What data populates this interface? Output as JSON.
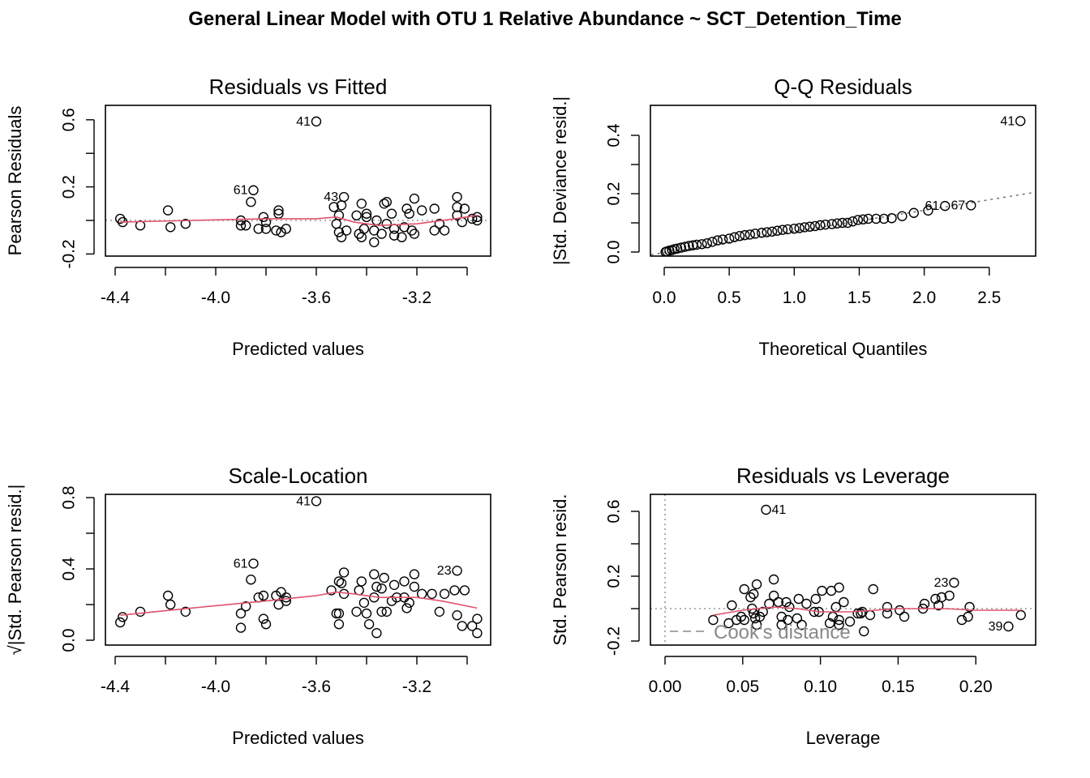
{
  "title": "General Linear Model with OTU 1 Relative Abundance ~ SCT_Detention_Time",
  "colors": {
    "points": "#000000",
    "smoother": "#DF536B",
    "reference": "#999999"
  },
  "chart_data": [
    {
      "id": "p1",
      "type": "scatter",
      "title": "Residuals vs Fitted",
      "xlabel": "Predicted values",
      "ylabel": "Pearson Residuals",
      "xticks": [
        -4.4,
        -4.2,
        -4.0,
        -3.8,
        -3.6,
        -3.4,
        -3.2,
        -3.0
      ],
      "xtick_labels": [
        "-4.4",
        "-4.0",
        "-3.6",
        "-3.2"
      ],
      "yticks": [
        -0.2,
        0,
        0.2,
        0.4,
        0.6
      ],
      "ytick_labels": [
        "-0.2",
        "0.2",
        "0.6"
      ],
      "reference_line": {
        "type": "horizontal",
        "y": 0,
        "style": "dotted"
      },
      "points": [
        [
          -4.38,
          0.01
        ],
        [
          -4.37,
          -0.01
        ],
        [
          -4.3,
          -0.03
        ],
        [
          -4.19,
          0.06
        ],
        [
          -4.18,
          -0.04
        ],
        [
          -4.12,
          -0.02
        ],
        [
          -3.9,
          0.0
        ],
        [
          -3.9,
          -0.03
        ],
        [
          -3.88,
          -0.03
        ],
        [
          -3.86,
          0.11
        ],
        [
          -3.83,
          -0.05
        ],
        [
          -3.81,
          0.02
        ],
        [
          -3.8,
          -0.01
        ],
        [
          -3.8,
          -0.05
        ],
        [
          -3.75,
          0.06
        ],
        [
          -3.75,
          0.04
        ],
        [
          -3.76,
          -0.06
        ],
        [
          -3.74,
          -0.07
        ],
        [
          -3.72,
          -0.05
        ],
        [
          -3.53,
          0.08
        ],
        [
          -3.51,
          0.03
        ],
        [
          -3.52,
          -0.02
        ],
        [
          -3.5,
          0.09
        ],
        [
          -3.51,
          -0.07
        ],
        [
          -3.5,
          -0.1
        ],
        [
          -3.48,
          -0.06
        ],
        [
          -3.44,
          0.03
        ],
        [
          -3.42,
          0.1
        ],
        [
          -3.4,
          0.04
        ],
        [
          -3.4,
          0.02
        ],
        [
          -3.41,
          -0.05
        ],
        [
          -3.43,
          -0.08
        ],
        [
          -3.42,
          -0.1
        ],
        [
          -3.36,
          0.0
        ],
        [
          -3.37,
          -0.13
        ],
        [
          -3.37,
          -0.06
        ],
        [
          -3.34,
          -0.08
        ],
        [
          -3.33,
          0.1
        ],
        [
          -3.32,
          0.11
        ],
        [
          -3.32,
          -0.02
        ],
        [
          -3.3,
          0.04
        ],
        [
          -3.29,
          -0.05
        ],
        [
          -3.29,
          -0.09
        ],
        [
          -3.26,
          -0.1
        ],
        [
          -3.25,
          -0.04
        ],
        [
          -3.24,
          0.07
        ],
        [
          -3.23,
          0.04
        ],
        [
          -3.22,
          -0.06
        ],
        [
          -3.21,
          -0.08
        ],
        [
          -3.21,
          0.13
        ],
        [
          -3.18,
          0.06
        ],
        [
          -3.13,
          0.07
        ],
        [
          -3.13,
          -0.06
        ],
        [
          -3.11,
          -0.02
        ],
        [
          -3.09,
          -0.06
        ],
        [
          -3.04,
          0.14
        ],
        [
          -3.04,
          0.08
        ],
        [
          -3.01,
          0.07
        ],
        [
          -3.04,
          0.03
        ],
        [
          -3.02,
          -0.01
        ],
        [
          -2.98,
          0.01
        ],
        [
          -2.96,
          0.02
        ],
        [
          -2.96,
          0.0
        ]
      ],
      "labeled_points": [
        {
          "id": "41",
          "x": -3.6,
          "y": 0.59
        },
        {
          "id": "61",
          "x": -3.85,
          "y": 0.18
        },
        {
          "id": "43",
          "x": -3.49,
          "y": 0.14
        }
      ],
      "smoother": [
        [
          -4.38,
          -0.01
        ],
        [
          -4.1,
          0.0
        ],
        [
          -3.8,
          0.01
        ],
        [
          -3.6,
          0.01
        ],
        [
          -3.52,
          0.02
        ],
        [
          -3.45,
          -0.01
        ],
        [
          -3.35,
          -0.03
        ],
        [
          -3.2,
          -0.02
        ],
        [
          -3.05,
          0.01
        ],
        [
          -2.96,
          0.03
        ]
      ]
    },
    {
      "id": "p2",
      "type": "scatter",
      "title": "Q-Q Residuals",
      "xlabel": "Theoretical Quantiles",
      "ylabel": "|Std. Deviance resid.|",
      "xticks": [
        0,
        0.5,
        1.0,
        1.5,
        2.0,
        2.5
      ],
      "xtick_labels": [
        "0.0",
        "0.5",
        "1.0",
        "1.5",
        "2.0",
        "2.5"
      ],
      "yticks": [
        0,
        0.1,
        0.2,
        0.3,
        0.4
      ],
      "ytick_labels": [
        "0.0",
        "0.2",
        "0.4"
      ],
      "reference_line": {
        "type": "abline",
        "intercept": -0.002,
        "slope": 0.0725,
        "style": "dashed"
      },
      "points": [
        [
          0.01,
          0.0
        ],
        [
          0.02,
          0.002
        ],
        [
          0.04,
          0.005
        ],
        [
          0.06,
          0.007
        ],
        [
          0.08,
          0.01
        ],
        [
          0.1,
          0.012
        ],
        [
          0.13,
          0.015
        ],
        [
          0.16,
          0.018
        ],
        [
          0.19,
          0.021
        ],
        [
          0.22,
          0.023
        ],
        [
          0.25,
          0.025
        ],
        [
          0.29,
          0.027
        ],
        [
          0.33,
          0.03
        ],
        [
          0.37,
          0.035
        ],
        [
          0.41,
          0.04
        ],
        [
          0.45,
          0.043
        ],
        [
          0.5,
          0.046
        ],
        [
          0.54,
          0.051
        ],
        [
          0.58,
          0.055
        ],
        [
          0.62,
          0.058
        ],
        [
          0.66,
          0.06
        ],
        [
          0.7,
          0.063
        ],
        [
          0.75,
          0.066
        ],
        [
          0.79,
          0.068
        ],
        [
          0.83,
          0.07
        ],
        [
          0.87,
          0.073
        ],
        [
          0.91,
          0.076
        ],
        [
          0.95,
          0.078
        ],
        [
          1.0,
          0.08
        ],
        [
          1.04,
          0.082
        ],
        [
          1.08,
          0.085
        ],
        [
          1.12,
          0.087
        ],
        [
          1.16,
          0.089
        ],
        [
          1.2,
          0.092
        ],
        [
          1.24,
          0.094
        ],
        [
          1.29,
          0.096
        ],
        [
          1.33,
          0.098
        ],
        [
          1.37,
          0.1
        ],
        [
          1.41,
          0.1
        ],
        [
          1.45,
          0.105
        ],
        [
          1.49,
          0.11
        ],
        [
          1.53,
          0.112
        ],
        [
          1.57,
          0.114
        ],
        [
          1.63,
          0.114
        ],
        [
          1.69,
          0.114
        ],
        [
          1.75,
          0.116
        ],
        [
          1.83,
          0.123
        ],
        [
          1.92,
          0.134
        ],
        [
          2.03,
          0.142
        ]
      ],
      "labeled_points": [
        {
          "id": "41",
          "x": 2.74,
          "y": 0.449
        },
        {
          "id": "67",
          "x": 2.36,
          "y": 0.16
        },
        {
          "id": "61",
          "x": 2.16,
          "y": 0.158
        }
      ],
      "smoother": []
    },
    {
      "id": "p3",
      "type": "scatter",
      "title": "Scale-Location",
      "xlabel": "Predicted values",
      "ylabel": "√|Std. Pearson resid.|",
      "xticks": [
        -4.4,
        -4.2,
        -4.0,
        -3.8,
        -3.6,
        -3.4,
        -3.2,
        -3.0
      ],
      "xtick_labels": [
        "-4.4",
        "-4.0",
        "-3.6",
        "-3.2"
      ],
      "yticks": [
        0,
        0.2,
        0.4,
        0.6,
        0.8
      ],
      "ytick_labels": [
        "0.0",
        "0.4",
        "0.8"
      ],
      "reference_line": null,
      "points": [
        [
          -4.38,
          0.1
        ],
        [
          -4.37,
          0.13
        ],
        [
          -4.3,
          0.16
        ],
        [
          -4.19,
          0.25
        ],
        [
          -4.18,
          0.2
        ],
        [
          -4.12,
          0.16
        ],
        [
          -3.9,
          0.15
        ],
        [
          -3.9,
          0.07
        ],
        [
          -3.88,
          0.19
        ],
        [
          -3.86,
          0.34
        ],
        [
          -3.83,
          0.24
        ],
        [
          -3.81,
          0.25
        ],
        [
          -3.81,
          0.12
        ],
        [
          -3.8,
          0.09
        ],
        [
          -3.76,
          0.25
        ],
        [
          -3.74,
          0.27
        ],
        [
          -3.75,
          0.2
        ],
        [
          -3.72,
          0.24
        ],
        [
          -3.72,
          0.22
        ],
        [
          -3.54,
          0.28
        ],
        [
          -3.52,
          0.15
        ],
        [
          -3.51,
          0.15
        ],
        [
          -3.51,
          0.09
        ],
        [
          -3.51,
          0.33
        ],
        [
          -3.5,
          0.32
        ],
        [
          -3.49,
          0.38
        ],
        [
          -3.49,
          0.26
        ],
        [
          -3.44,
          0.16
        ],
        [
          -3.43,
          0.28
        ],
        [
          -3.42,
          0.33
        ],
        [
          -3.41,
          0.21
        ],
        [
          -3.4,
          0.15
        ],
        [
          -3.39,
          0.09
        ],
        [
          -3.37,
          0.37
        ],
        [
          -3.36,
          0.04
        ],
        [
          -3.36,
          0.3
        ],
        [
          -3.37,
          0.24
        ],
        [
          -3.34,
          0.29
        ],
        [
          -3.33,
          0.35
        ],
        [
          -3.34,
          0.16
        ],
        [
          -3.32,
          0.16
        ],
        [
          -3.29,
          0.31
        ],
        [
          -3.3,
          0.22
        ],
        [
          -3.28,
          0.24
        ],
        [
          -3.25,
          0.33
        ],
        [
          -3.25,
          0.24
        ],
        [
          -3.24,
          0.18
        ],
        [
          -3.23,
          0.21
        ],
        [
          -3.21,
          0.37
        ],
        [
          -3.21,
          0.3
        ],
        [
          -3.18,
          0.26
        ],
        [
          -3.14,
          0.26
        ],
        [
          -3.11,
          0.16
        ],
        [
          -3.09,
          0.26
        ],
        [
          -3.05,
          0.28
        ],
        [
          -3.01,
          0.28
        ],
        [
          -3.04,
          0.14
        ],
        [
          -3.02,
          0.08
        ],
        [
          -2.98,
          0.08
        ],
        [
          -2.96,
          0.12
        ],
        [
          -2.96,
          0.04
        ]
      ],
      "labeled_points": [
        {
          "id": "41",
          "x": -3.6,
          "y": 0.78
        },
        {
          "id": "61",
          "x": -3.85,
          "y": 0.43
        },
        {
          "id": "23",
          "x": -3.04,
          "y": 0.39
        }
      ],
      "smoother": [
        [
          -4.38,
          0.14
        ],
        [
          -4.1,
          0.18
        ],
        [
          -3.8,
          0.22
        ],
        [
          -3.6,
          0.25
        ],
        [
          -3.52,
          0.27
        ],
        [
          -3.45,
          0.26
        ],
        [
          -3.35,
          0.24
        ],
        [
          -3.2,
          0.24
        ],
        [
          -3.1,
          0.22
        ],
        [
          -2.96,
          0.18
        ]
      ]
    },
    {
      "id": "p4",
      "type": "scatter",
      "title": "Residuals vs Leverage",
      "xlabel": "Leverage",
      "ylabel": "Std. Pearson resid.",
      "xticks": [
        0,
        0.05,
        0.1,
        0.15,
        0.2
      ],
      "xtick_labels": [
        "0.00",
        "0.05",
        "0.10",
        "0.15",
        "0.20"
      ],
      "yticks": [
        -0.2,
        0,
        0.2,
        0.4,
        0.6
      ],
      "ytick_labels": [
        "-0.2",
        "0.2",
        "0.6"
      ],
      "reference_line": {
        "type": "crosshair",
        "x": 0,
        "y": 0,
        "style": "dotted"
      },
      "legend": {
        "label": "Cook's distance",
        "position": "bottom-left"
      },
      "points": [
        [
          0.031,
          -0.07
        ],
        [
          0.041,
          -0.09
        ],
        [
          0.043,
          0.02
        ],
        [
          0.046,
          -0.07
        ],
        [
          0.049,
          -0.05
        ],
        [
          0.051,
          0.12
        ],
        [
          0.051,
          -0.07
        ],
        [
          0.055,
          0.07
        ],
        [
          0.057,
          0.09
        ],
        [
          0.059,
          0.15
        ],
        [
          0.056,
          0.0
        ],
        [
          0.057,
          -0.03
        ],
        [
          0.058,
          -0.06
        ],
        [
          0.059,
          -0.1
        ],
        [
          0.061,
          -0.05
        ],
        [
          0.063,
          -0.02
        ],
        [
          0.067,
          0.03
        ],
        [
          0.07,
          0.18
        ],
        [
          0.07,
          0.08
        ],
        [
          0.073,
          0.04
        ],
        [
          0.075,
          -0.05
        ],
        [
          0.075,
          -0.1
        ],
        [
          0.078,
          0.04
        ],
        [
          0.079,
          -0.07
        ],
        [
          0.08,
          0.01
        ],
        [
          0.085,
          -0.06
        ],
        [
          0.086,
          0.06
        ],
        [
          0.088,
          -0.1
        ],
        [
          0.091,
          0.03
        ],
        [
          0.096,
          -0.02
        ],
        [
          0.097,
          0.06
        ],
        [
          0.099,
          -0.02
        ],
        [
          0.101,
          0.11
        ],
        [
          0.107,
          0.11
        ],
        [
          0.106,
          -0.09
        ],
        [
          0.108,
          -0.05
        ],
        [
          0.11,
          0.01
        ],
        [
          0.112,
          0.13
        ],
        [
          0.112,
          -0.07
        ],
        [
          0.112,
          -0.1
        ],
        [
          0.115,
          0.04
        ],
        [
          0.119,
          -0.08
        ],
        [
          0.124,
          -0.03
        ],
        [
          0.126,
          -0.03
        ],
        [
          0.127,
          -0.02
        ],
        [
          0.128,
          -0.14
        ],
        [
          0.132,
          -0.04
        ],
        [
          0.134,
          0.12
        ],
        [
          0.143,
          0.01
        ],
        [
          0.143,
          -0.03
        ],
        [
          0.151,
          -0.01
        ],
        [
          0.154,
          -0.05
        ],
        [
          0.166,
          0.0
        ],
        [
          0.167,
          0.03
        ],
        [
          0.174,
          0.06
        ],
        [
          0.176,
          0.02
        ],
        [
          0.178,
          0.07
        ],
        [
          0.183,
          0.08
        ],
        [
          0.191,
          -0.07
        ],
        [
          0.195,
          -0.05
        ],
        [
          0.196,
          0.01
        ],
        [
          0.229,
          -0.04
        ]
      ],
      "labeled_points": [
        {
          "id": "41",
          "x": 0.065,
          "y": 0.61
        },
        {
          "id": "23",
          "x": 0.186,
          "y": 0.16
        },
        {
          "id": "39",
          "x": 0.221,
          "y": -0.11
        }
      ],
      "smoother": [
        [
          0.031,
          -0.04
        ],
        [
          0.05,
          -0.01
        ],
        [
          0.07,
          0.01
        ],
        [
          0.085,
          0.0
        ],
        [
          0.1,
          -0.02
        ],
        [
          0.12,
          -0.02
        ],
        [
          0.15,
          0.0
        ],
        [
          0.18,
          0.0
        ],
        [
          0.2,
          -0.01
        ],
        [
          0.229,
          -0.01
        ]
      ]
    }
  ]
}
